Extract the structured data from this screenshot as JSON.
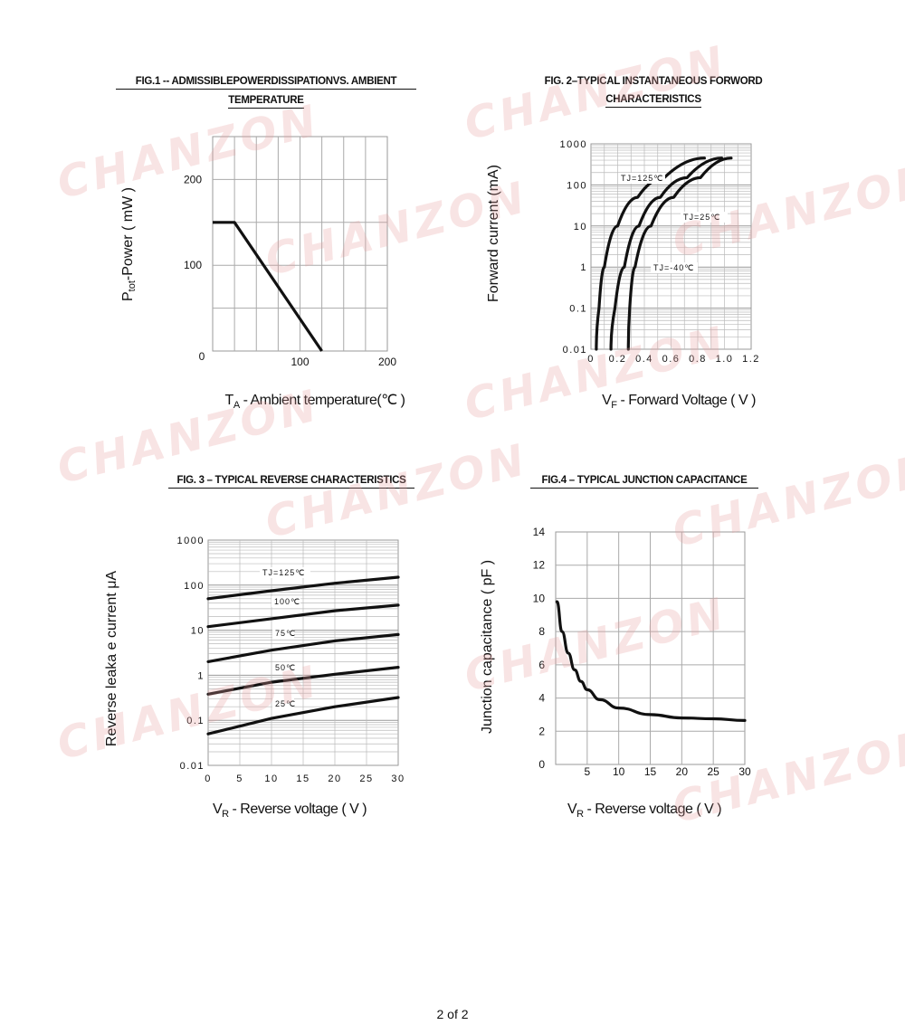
{
  "watermark": "CHANZON",
  "page_number": "2  of 2",
  "chart_data": [
    {
      "id": "fig1",
      "type": "line",
      "title_line1": "FIG.1 -- ADMISSIBLEPOWERDISSIPATIONVS. AMBIENT",
      "title_line2": "TEMPERATURE",
      "ylabel": "Ptot-Power ( mW )",
      "ylabel_main": "P",
      "ylabel_sub": "tot",
      "ylabel_rest": "-Power ( mW )",
      "xlabel_main": "T",
      "xlabel_sub": "A",
      "xlabel_rest": " - Ambient  temperature(℃ )",
      "xlim": [
        0,
        200
      ],
      "ylim": [
        0,
        250
      ],
      "x_ticks": [
        {
          "v": 0,
          "label": "0"
        },
        {
          "v": 100,
          "label": "100"
        },
        {
          "v": 200,
          "label": "200"
        }
      ],
      "y_ticks": [
        {
          "v": 100,
          "label": "100"
        },
        {
          "v": 200,
          "label": "200"
        }
      ],
      "grid": true,
      "series": [
        {
          "x": [
            0,
            25,
            125
          ],
          "y": [
            150,
            150,
            0
          ]
        }
      ]
    },
    {
      "id": "fig2",
      "type": "line",
      "y_scale": "log",
      "title_line1": "FIG. 2–TYPICAL  INSTANTANEOUS  FORWORD",
      "title_line2": "CHARACTERISTICS",
      "ylabel": "Forward current (mA)",
      "xlabel_main": "V",
      "xlabel_sub": "F",
      "xlabel_rest": " - Forward Voltage ( V )",
      "xlim": [
        0,
        1.2
      ],
      "ylim": [
        0.01,
        1000
      ],
      "x_ticks": [
        "0",
        "0.2",
        "0.4",
        "0.6",
        "0.8",
        "1.0",
        "1.2"
      ],
      "y_ticks": [
        "0.01",
        "0.1",
        "1",
        "10",
        "100",
        "1000"
      ],
      "grid": true,
      "series": [
        {
          "name": "TJ=125℃",
          "x": [
            0.04,
            0.06,
            0.1,
            0.2,
            0.35,
            0.55,
            0.85
          ],
          "y": [
            0.01,
            0.1,
            1,
            10,
            50,
            150,
            450
          ]
        },
        {
          "name": "TJ=25℃",
          "x": [
            0.15,
            0.18,
            0.25,
            0.36,
            0.52,
            0.72,
            0.98
          ],
          "y": [
            0.01,
            0.1,
            1,
            10,
            50,
            150,
            450
          ]
        },
        {
          "name": "TJ=-40℃",
          "x": [
            0.28,
            0.29,
            0.33,
            0.45,
            0.62,
            0.82,
            1.05
          ],
          "y": [
            0.01,
            0.1,
            1,
            10,
            50,
            150,
            450
          ]
        }
      ],
      "curve_labels": [
        "TJ=125℃",
        "TJ=25℃",
        "TJ=-40℃"
      ]
    },
    {
      "id": "fig3",
      "type": "line",
      "y_scale": "log",
      "title_line1": "FIG. 3  –  TYPICAL  REVERSE  CHARACTERISTICS",
      "ylabel": "Reverse leaka   e current    μA",
      "xlabel_main": "V",
      "xlabel_sub": "R",
      "xlabel_rest": " - Reverse  voltage ( V )",
      "xlim": [
        0,
        30
      ],
      "ylim": [
        0.01,
        1000
      ],
      "x_ticks": [
        "0",
        "5",
        "10",
        "15",
        "20",
        "25",
        "30"
      ],
      "y_ticks": [
        "0.01",
        "0.1",
        "1",
        "10",
        "100",
        "1000"
      ],
      "grid": true,
      "series": [
        {
          "name": "TJ=125℃",
          "x": [
            0,
            10,
            20,
            30
          ],
          "y": [
            50,
            75,
            110,
            150
          ]
        },
        {
          "name": "100℃",
          "x": [
            0,
            10,
            20,
            30
          ],
          "y": [
            12,
            18,
            27,
            36
          ]
        },
        {
          "name": "75℃",
          "x": [
            0,
            10,
            20,
            30
          ],
          "y": [
            2,
            3.6,
            5.8,
            8
          ]
        },
        {
          "name": "50℃",
          "x": [
            0,
            10,
            20,
            30
          ],
          "y": [
            0.38,
            0.7,
            1.05,
            1.5
          ]
        },
        {
          "name": "25℃",
          "x": [
            0,
            10,
            20,
            30
          ],
          "y": [
            0.05,
            0.11,
            0.2,
            0.32
          ]
        }
      ],
      "curve_labels": [
        "TJ=125℃",
        "100℃",
        "75℃",
        "50℃",
        "25℃"
      ]
    },
    {
      "id": "fig4",
      "type": "line",
      "title_line1": "FIG.4  –  TYPICAL  JUNCTION  CAPACITANCE",
      "ylabel": "Junction capacitance ( pF )",
      "xlabel_main": "V",
      "xlabel_sub": "R",
      "xlabel_rest": " - Reverse  voltage ( V )",
      "xlim": [
        0,
        30
      ],
      "ylim": [
        0,
        14
      ],
      "x_ticks": [
        {
          "v": 5,
          "label": "5"
        },
        {
          "v": 10,
          "label": "10"
        },
        {
          "v": 15,
          "label": "15"
        },
        {
          "v": 20,
          "label": "20"
        },
        {
          "v": 25,
          "label": "25"
        },
        {
          "v": 30,
          "label": "30"
        }
      ],
      "y_ticks": [
        {
          "v": 0,
          "label": "0"
        },
        {
          "v": 2,
          "label": "2"
        },
        {
          "v": 4,
          "label": "4"
        },
        {
          "v": 6,
          "label": "6"
        },
        {
          "v": 8,
          "label": "8"
        },
        {
          "v": 10,
          "label": "10"
        },
        {
          "v": 12,
          "label": "12"
        },
        {
          "v": 14,
          "label": "14"
        }
      ],
      "grid": true,
      "series": [
        {
          "x": [
            0.2,
            1,
            2,
            3,
            4,
            5,
            7,
            10,
            15,
            20,
            25,
            30
          ],
          "y": [
            9.8,
            8,
            6.7,
            5.7,
            5,
            4.5,
            3.9,
            3.4,
            3,
            2.8,
            2.75,
            2.65
          ]
        }
      ]
    }
  ]
}
